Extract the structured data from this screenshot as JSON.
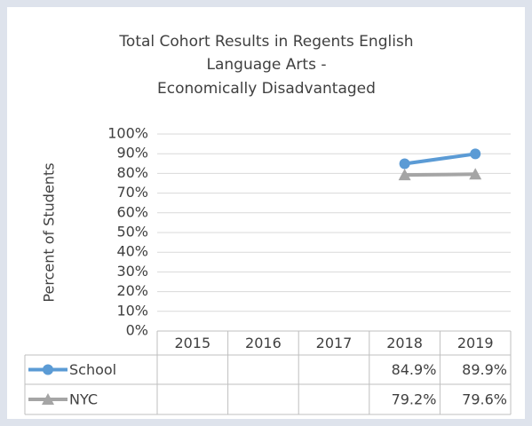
{
  "chart_data": {
    "type": "line",
    "title": [
      "Total Cohort Results in Regents English",
      "Language Arts -",
      "Economically Disadvantaged"
    ],
    "y_label": "Percent of Students",
    "categories": [
      "2015",
      "2016",
      "2017",
      "2018",
      "2019"
    ],
    "series": [
      {
        "name": "School",
        "color": "#5b9bd5",
        "marker": "circle",
        "values": [
          null,
          null,
          null,
          84.9,
          89.9
        ],
        "value_labels": [
          null,
          null,
          null,
          "84.9%",
          "89.9%"
        ]
      },
      {
        "name": "NYC",
        "color": "#a5a5a5",
        "marker": "triangle",
        "values": [
          null,
          null,
          null,
          79.2,
          79.6
        ],
        "value_labels": [
          null,
          null,
          null,
          "79.2%",
          "79.6%"
        ]
      }
    ],
    "ylim": [
      0,
      100
    ],
    "yticks": [
      {
        "value": 0,
        "label": "0%"
      },
      {
        "value": 10,
        "label": "10%"
      },
      {
        "value": 20,
        "label": "20%"
      },
      {
        "value": 30,
        "label": "30%"
      },
      {
        "value": 40,
        "label": "40%"
      },
      {
        "value": 50,
        "label": "50%"
      },
      {
        "value": 60,
        "label": "60%"
      },
      {
        "value": 70,
        "label": "70%"
      },
      {
        "value": 80,
        "label": "80%"
      },
      {
        "value": 90,
        "label": "90%"
      },
      {
        "value": 100,
        "label": "100%"
      }
    ],
    "grid": true,
    "data_table": true
  }
}
